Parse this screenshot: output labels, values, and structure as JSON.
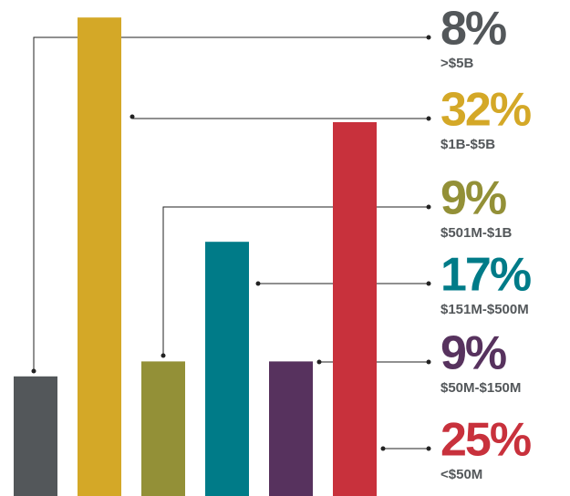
{
  "chart_data": {
    "type": "bar",
    "categories": [
      ">$5B",
      "$1B-$5B",
      "$501M-$1B",
      "$151M-$500M",
      "$50M-$150M",
      "<$50M"
    ],
    "values": [
      8,
      32,
      9,
      17,
      9,
      25
    ],
    "value_labels": [
      "8%",
      "32%",
      "9%",
      "17%",
      "9%",
      "25%"
    ],
    "colors": [
      "#53575a",
      "#d4a827",
      "#939037",
      "#007b88",
      "#57325e",
      "#c8313c"
    ]
  }
}
